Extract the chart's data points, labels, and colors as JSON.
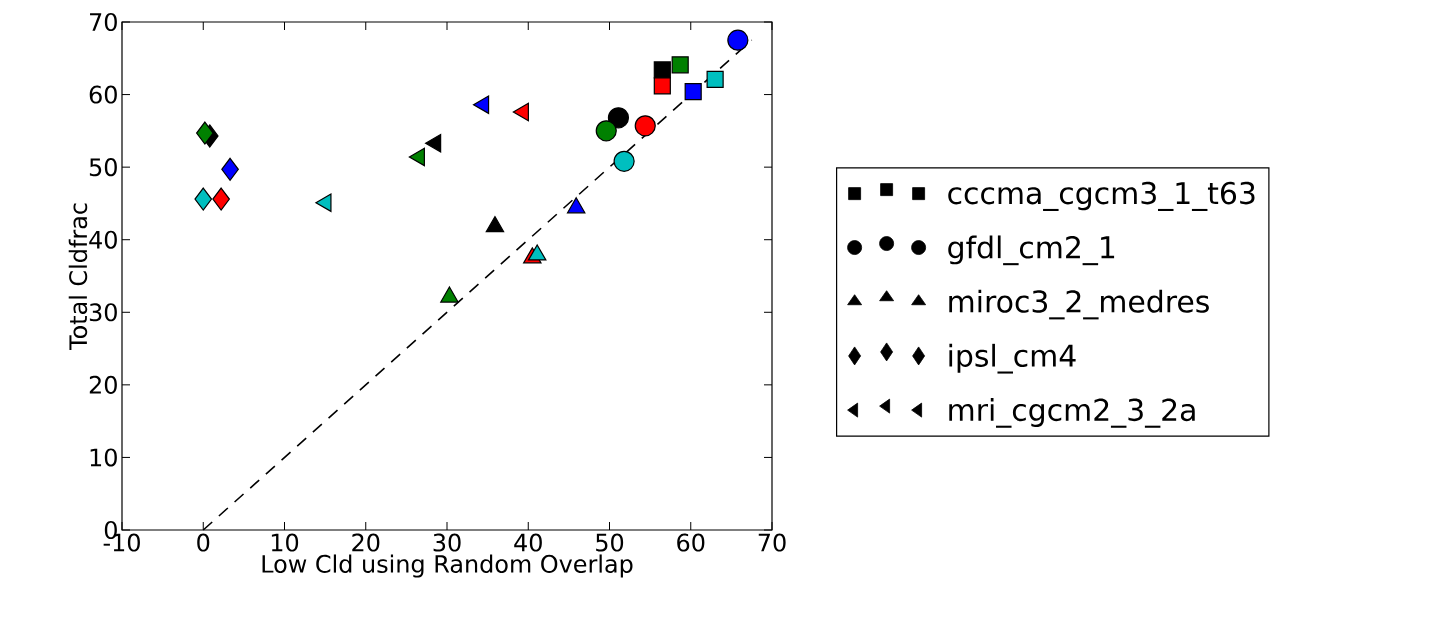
{
  "chart_data": {
    "type": "scatter",
    "xlabel": "Low Cld using Random Overlap",
    "ylabel": "Total Cldfrac",
    "xlim": [
      -10,
      70
    ],
    "ylim": [
      0,
      70
    ],
    "xticks": [
      -10,
      0,
      10,
      20,
      30,
      40,
      50,
      60,
      70
    ],
    "yticks": [
      0,
      10,
      20,
      30,
      40,
      50,
      60,
      70
    ],
    "grid": false,
    "legend": "right",
    "series": [
      {
        "name": "cccma_cgcm3_1_t63",
        "color": "#000000",
        "marker": "square",
        "x": [
          56.5,
          58.7,
          56.5,
          60.3,
          63.0
        ],
        "values": [
          63.4,
          64.1,
          61.2,
          60.4,
          62.1
        ],
        "colors": [
          "#000000",
          "#008000",
          "#ff0000",
          "#0000ff",
          "#00bfbf"
        ]
      },
      {
        "name": "gfdl_cm2_1",
        "color": "#000000",
        "marker": "circle",
        "x": [
          51.1,
          49.6,
          54.4,
          65.8,
          51.8
        ],
        "values": [
          56.8,
          55.0,
          55.7,
          67.5,
          50.8
        ],
        "colors": [
          "#000000",
          "#008000",
          "#ff0000",
          "#0000ff",
          "#00bfbf"
        ]
      },
      {
        "name": "miroc3_2_medres",
        "color": "#000000",
        "marker": "triangle",
        "x": [
          35.9,
          30.3,
          40.5,
          45.9,
          41.1
        ],
        "values": [
          41.8,
          32.1,
          37.5,
          44.4,
          37.9
        ],
        "colors": [
          "#000000",
          "#008000",
          "#ff0000",
          "#0000ff",
          "#00bfbf"
        ]
      },
      {
        "name": "ipsl_cm4",
        "color": "#000000",
        "marker": "diamond",
        "x": [
          0.8,
          0.2,
          2.2,
          3.3,
          0.0
        ],
        "values": [
          54.3,
          54.7,
          45.6,
          49.7,
          45.6
        ],
        "colors": [
          "#000000",
          "#008000",
          "#ff0000",
          "#0000ff",
          "#00bfbf"
        ]
      },
      {
        "name": "mri_cgcm2_3_2a",
        "color": "#000000",
        "marker": "triangle-left",
        "x": [
          28.6,
          26.6,
          39.4,
          34.5,
          15.1
        ],
        "values": [
          53.3,
          51.4,
          57.6,
          58.6,
          45.1
        ],
        "colors": [
          "#000000",
          "#008000",
          "#ff0000",
          "#0000ff",
          "#00bfbf"
        ]
      },
      {
        "type": "line",
        "color": "#000000",
        "line_style": "dashed",
        "marker": "none",
        "x": [
          0,
          67.5
        ],
        "values": [
          0,
          67.5
        ]
      }
    ]
  }
}
